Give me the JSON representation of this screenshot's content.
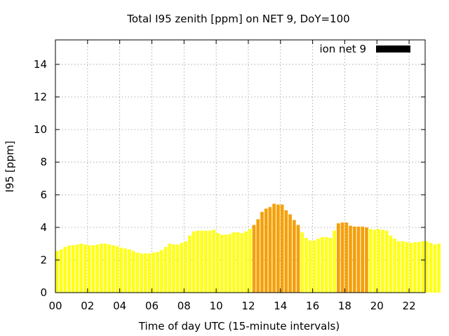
{
  "chart_data": {
    "type": "bar",
    "title": "Total I95 zenith [ppm] on NET 9, DoY=100",
    "xlabel": "Time of day UTC (15-minute intervals)",
    "ylabel": "I95 [ppm]",
    "xlim": [
      0,
      23
    ],
    "ylim": [
      0,
      15.5
    ],
    "x_ticks": [
      "00",
      "02",
      "04",
      "06",
      "08",
      "10",
      "12",
      "14",
      "16",
      "18",
      "20",
      "22"
    ],
    "y_ticks": [
      "0",
      "2",
      "4",
      "6",
      "8",
      "10",
      "12",
      "14"
    ],
    "grid": true,
    "legend": {
      "position": "top-right",
      "entries": [
        {
          "label": "ion net 9",
          "color": "#000000"
        }
      ]
    },
    "bar_colors": {
      "normal": "#ffff1a",
      "elevated": "#f5a00a"
    },
    "interval_hours": 0.25,
    "values": [
      2.55,
      2.65,
      2.8,
      2.9,
      2.9,
      2.95,
      3.0,
      2.95,
      2.9,
      2.9,
      2.95,
      3.0,
      3.0,
      2.95,
      2.9,
      2.85,
      2.75,
      2.7,
      2.65,
      2.55,
      2.45,
      2.4,
      2.4,
      2.4,
      2.45,
      2.5,
      2.6,
      2.8,
      3.0,
      2.95,
      2.95,
      3.05,
      3.15,
      3.5,
      3.75,
      3.8,
      3.8,
      3.8,
      3.8,
      3.85,
      3.65,
      3.55,
      3.55,
      3.6,
      3.7,
      3.7,
      3.65,
      3.75,
      3.9,
      4.15,
      4.5,
      4.95,
      5.15,
      5.25,
      5.45,
      5.4,
      5.4,
      5.05,
      4.8,
      4.45,
      4.15,
      3.7,
      3.35,
      3.2,
      3.2,
      3.3,
      3.4,
      3.4,
      3.35,
      3.8,
      4.25,
      4.3,
      4.3,
      4.1,
      4.05,
      4.05,
      4.05,
      4.0,
      3.9,
      3.85,
      3.9,
      3.85,
      3.8,
      3.5,
      3.3,
      3.15,
      3.15,
      3.1,
      3.05,
      3.1,
      3.1,
      3.15,
      3.15,
      3.05,
      2.95,
      3.0
    ],
    "levels": [
      "normal",
      "normal",
      "normal",
      "normal",
      "normal",
      "normal",
      "normal",
      "normal",
      "normal",
      "normal",
      "normal",
      "normal",
      "normal",
      "normal",
      "normal",
      "normal",
      "normal",
      "normal",
      "normal",
      "normal",
      "normal",
      "normal",
      "normal",
      "normal",
      "normal",
      "normal",
      "normal",
      "normal",
      "normal",
      "normal",
      "normal",
      "normal",
      "normal",
      "normal",
      "normal",
      "normal",
      "normal",
      "normal",
      "normal",
      "normal",
      "normal",
      "normal",
      "normal",
      "normal",
      "normal",
      "normal",
      "normal",
      "normal",
      "normal",
      "elevated",
      "elevated",
      "elevated",
      "elevated",
      "elevated",
      "elevated",
      "elevated",
      "elevated",
      "elevated",
      "elevated",
      "elevated",
      "elevated",
      "normal",
      "normal",
      "normal",
      "normal",
      "normal",
      "normal",
      "normal",
      "normal",
      "normal",
      "elevated",
      "elevated",
      "elevated",
      "elevated",
      "elevated",
      "elevated",
      "elevated",
      "elevated",
      "normal",
      "normal",
      "normal",
      "normal",
      "normal",
      "normal",
      "normal",
      "normal",
      "normal",
      "normal",
      "normal",
      "normal",
      "normal",
      "normal",
      "normal",
      "normal",
      "normal",
      "normal"
    ]
  }
}
